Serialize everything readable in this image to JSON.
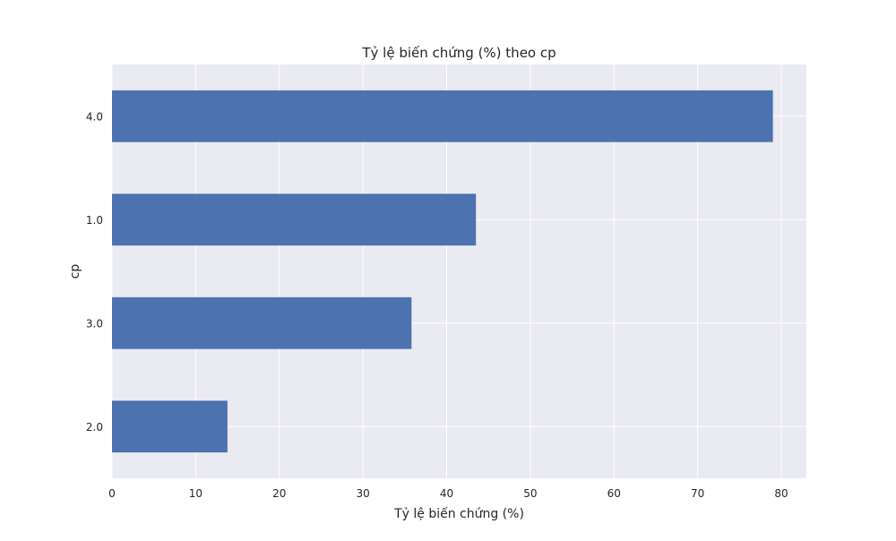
{
  "chart_data": {
    "type": "bar",
    "orientation": "horizontal",
    "title": "Tỷ lệ biến chứng (%) theo cp",
    "xlabel": "Tỷ lệ biến chứng (%)",
    "ylabel": "cp",
    "categories": [
      "4.0",
      "1.0",
      "3.0",
      "2.0"
    ],
    "values": [
      79.0,
      43.5,
      35.8,
      13.8
    ],
    "xlim": [
      0,
      83
    ],
    "xticks": [
      0,
      10,
      20,
      30,
      40,
      50,
      60,
      70,
      80
    ],
    "grid": true,
    "legend": "none",
    "colors": {
      "bar": "#4c72b0",
      "plot_background": "#eaeaf2",
      "grid": "#ffffff",
      "text": "#262626"
    }
  }
}
